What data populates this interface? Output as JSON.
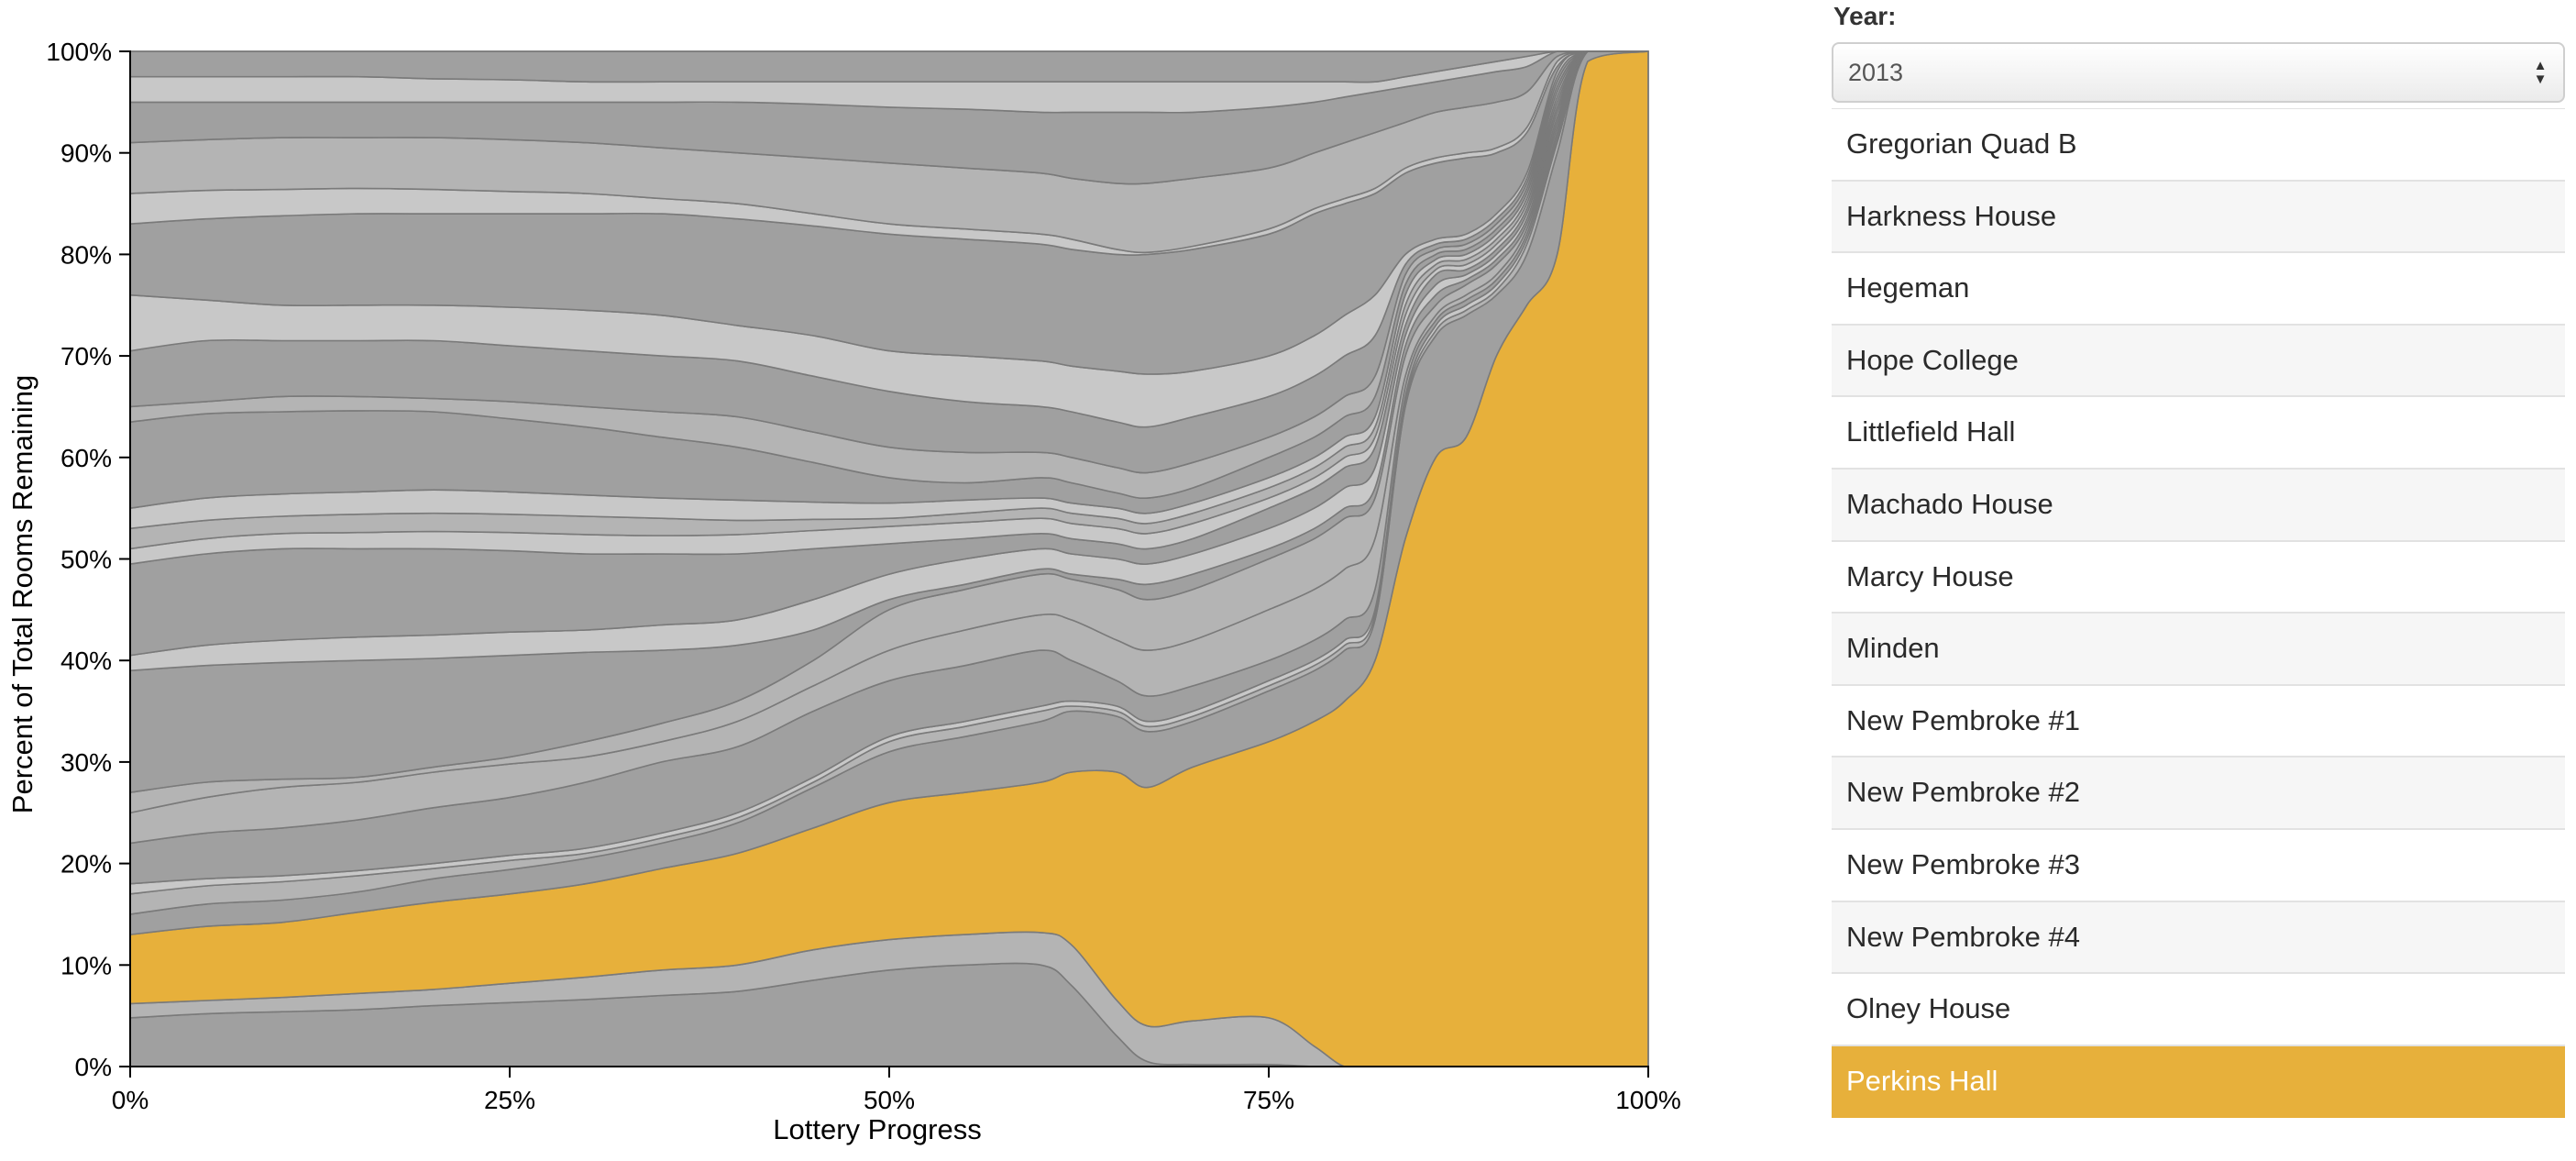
{
  "chart_data": {
    "type": "area",
    "stacked": true,
    "title": "",
    "xlabel": "Lottery Progress",
    "ylabel": "Percent of Total Rooms Remaining",
    "xlim": [
      0,
      100
    ],
    "ylim": [
      0,
      100
    ],
    "x_ticks": [
      "0%",
      "25%",
      "50%",
      "75%",
      "100%"
    ],
    "y_ticks": [
      "0%",
      "10%",
      "20%",
      "30%",
      "40%",
      "50%",
      "60%",
      "70%",
      "80%",
      "90%",
      "100%"
    ],
    "highlight_color": "#e7b03b",
    "x": [
      0,
      5,
      10,
      15,
      20,
      25,
      30,
      35,
      40,
      45,
      50,
      55,
      60,
      62,
      65,
      67,
      70,
      75,
      78,
      80,
      82,
      84,
      86,
      88,
      90,
      92,
      94,
      96,
      100
    ],
    "boundaries": [
      [
        4.8,
        5.2,
        5.4,
        5.6,
        6,
        6.3,
        6.6,
        7,
        7.4,
        8.5,
        9.5,
        10,
        10,
        8,
        3,
        0.5,
        0.2,
        0.2,
        0,
        0,
        0,
        0,
        0,
        0,
        0,
        0,
        0,
        0,
        0
      ],
      [
        6.2,
        6.5,
        6.8,
        7.2,
        7.6,
        8.2,
        8.8,
        9.5,
        10,
        11.5,
        12.5,
        13,
        13.2,
        12,
        6.5,
        4,
        4.5,
        4.8,
        2,
        0,
        0,
        0,
        0,
        0,
        0,
        0,
        0,
        0,
        0
      ],
      [
        13,
        13.8,
        14.2,
        15.2,
        16.2,
        17,
        18,
        19.5,
        21,
        23.5,
        26,
        27,
        28,
        29,
        29,
        27.5,
        29.5,
        32,
        34,
        36,
        40,
        52,
        60,
        62,
        70,
        75,
        80,
        99,
        100
      ],
      [
        15,
        16,
        16.4,
        17.2,
        18.5,
        19.4,
        20.5,
        22,
        24,
        27.5,
        31,
        32.5,
        34,
        35,
        34.5,
        33,
        34,
        37,
        39,
        41,
        44,
        65,
        72,
        74,
        76,
        80,
        90,
        100,
        100
      ],
      [
        17,
        17.8,
        18.2,
        18.8,
        19.5,
        20.3,
        21,
        22.5,
        24.5,
        28,
        32,
        33.5,
        35,
        35.5,
        35,
        33.5,
        34.5,
        37.5,
        39.5,
        41.5,
        44.5,
        65.5,
        72.5,
        74.5,
        76.5,
        81,
        91,
        100,
        100
      ],
      [
        18,
        18.5,
        18.8,
        19.3,
        20,
        20.8,
        21.5,
        23,
        25,
        28.5,
        32.5,
        34,
        35.5,
        36,
        35.5,
        34,
        35,
        38,
        40,
        42,
        45,
        66,
        73,
        75,
        77,
        81.5,
        91.5,
        100,
        100
      ],
      [
        22,
        23,
        23.5,
        24.3,
        25.5,
        26.5,
        28,
        30,
        31.5,
        35,
        38,
        39.5,
        41,
        40,
        38,
        36.5,
        37.5,
        40,
        42,
        44,
        47,
        67,
        73.5,
        75.5,
        77.5,
        82,
        92,
        100,
        100
      ],
      [
        25,
        26.5,
        27.5,
        28,
        29,
        29.8,
        30.5,
        32,
        34,
        37.5,
        41,
        43,
        44.5,
        44,
        42,
        41,
        42,
        45,
        47,
        49,
        52,
        68,
        74,
        76,
        78,
        82.5,
        92.5,
        100,
        100
      ],
      [
        27,
        28,
        28.3,
        28.5,
        29.5,
        30.5,
        32,
        33.8,
        36,
        40,
        45,
        47,
        48.5,
        48,
        47,
        46,
        47,
        50,
        52,
        54,
        56,
        70,
        75,
        77,
        79,
        83,
        93,
        100,
        100
      ],
      [
        39,
        39.5,
        39.8,
        40,
        40.2,
        40.5,
        40.8,
        41,
        41.5,
        43,
        46,
        47.5,
        49,
        48.5,
        48,
        47.5,
        48.5,
        51,
        53,
        55,
        57,
        71,
        76,
        77.5,
        79.5,
        83.5,
        93.5,
        100,
        100
      ],
      [
        40.5,
        41.5,
        42,
        42.3,
        42.5,
        42.8,
        43,
        43.5,
        44,
        46,
        48.5,
        50,
        51,
        50.5,
        50,
        49.5,
        50.5,
        53,
        55,
        57,
        59,
        72,
        77,
        78,
        80,
        84,
        94,
        100,
        100
      ],
      [
        49.5,
        50.5,
        51,
        51,
        51,
        50.8,
        50.5,
        50.5,
        50.5,
        51,
        51.5,
        52,
        52.5,
        52,
        51.5,
        51,
        52,
        55,
        57,
        59,
        61,
        73,
        78,
        78.5,
        80.5,
        84.5,
        94.5,
        100,
        100
      ],
      [
        51,
        52,
        52.5,
        52.6,
        52.7,
        52.6,
        52.4,
        52.3,
        52.4,
        52.8,
        53.2,
        53.6,
        54,
        53.5,
        53,
        52.5,
        53.5,
        56,
        58,
        60,
        62,
        74,
        78.5,
        79,
        81,
        85,
        95,
        100,
        100
      ],
      [
        53,
        53.8,
        54.2,
        54.4,
        54.5,
        54.4,
        54.2,
        54,
        53.8,
        53.9,
        54,
        54.5,
        55,
        54.5,
        54,
        53.5,
        54.5,
        57,
        59,
        61,
        63,
        75,
        79,
        79.5,
        81.5,
        85.5,
        95.5,
        100,
        100
      ],
      [
        55,
        56,
        56.4,
        56.6,
        56.8,
        56.6,
        56.3,
        56,
        55.8,
        55.6,
        55.5,
        55.8,
        56,
        55.5,
        55,
        54.5,
        55.5,
        58,
        60,
        62,
        64,
        76,
        79.5,
        80,
        82,
        86,
        96,
        100,
        100
      ],
      [
        63.5,
        64.3,
        64.5,
        64.6,
        64.5,
        63.8,
        63,
        62,
        61,
        59.5,
        58,
        57.5,
        58,
        57.5,
        56.5,
        56,
        57,
        60,
        62,
        64,
        66,
        77,
        80,
        80.5,
        82.5,
        86.5,
        96.5,
        100,
        100
      ],
      [
        65,
        65.5,
        66,
        66,
        65.8,
        65.5,
        65,
        64.5,
        64,
        62.5,
        61,
        60.5,
        60.5,
        60,
        59,
        58.5,
        59.5,
        62,
        64,
        66,
        68,
        78,
        80.5,
        81,
        83,
        87,
        97,
        100,
        100
      ],
      [
        70.5,
        71.5,
        71.5,
        71.5,
        71.5,
        71,
        70.5,
        70,
        69.5,
        68,
        66.5,
        65.5,
        65,
        64.5,
        63.5,
        63,
        64,
        66,
        68,
        70,
        72,
        79,
        81,
        81.5,
        83.5,
        87.5,
        97.5,
        100,
        100
      ],
      [
        76,
        75.5,
        75,
        75,
        75,
        74.8,
        74.5,
        74,
        73,
        72,
        70.5,
        70,
        69.5,
        69,
        68.5,
        68.2,
        68.5,
        70,
        72,
        74,
        76,
        80,
        81.5,
        82,
        84,
        88,
        98,
        100,
        100
      ],
      [
        83,
        83.5,
        83.8,
        84,
        84,
        84,
        84,
        84,
        83.5,
        82.8,
        82,
        81.5,
        81,
        80.5,
        80,
        80,
        80.5,
        82,
        84,
        85,
        86,
        88,
        89,
        89.5,
        90,
        92,
        98.5,
        100,
        100
      ],
      [
        86,
        86.3,
        86.4,
        86.5,
        86.4,
        86.2,
        86,
        85.5,
        85,
        84,
        83,
        82.5,
        82,
        81.5,
        80.5,
        80.2,
        80.8,
        82.5,
        84.5,
        85.5,
        86.5,
        88.5,
        89.5,
        90,
        90.5,
        92.5,
        99,
        100,
        100
      ],
      [
        91,
        91.3,
        91.5,
        91.5,
        91.5,
        91.3,
        91,
        90.5,
        90,
        89.5,
        89,
        88.5,
        88,
        87.5,
        87,
        87,
        87.5,
        88.5,
        90,
        91,
        92,
        93,
        94,
        94.5,
        95,
        96,
        99.5,
        100,
        100
      ],
      [
        95,
        95,
        95,
        95,
        95,
        95,
        95,
        95,
        95,
        94.8,
        94.5,
        94.3,
        94,
        94,
        94,
        94,
        94,
        94.5,
        95,
        95.5,
        96,
        96.5,
        97,
        97.5,
        98,
        98.5,
        100,
        100,
        100
      ],
      [
        97.5,
        97.5,
        97.5,
        97.5,
        97.3,
        97.2,
        97,
        97,
        97,
        97,
        97,
        97,
        97,
        97,
        97,
        97,
        97,
        97,
        97,
        97,
        97,
        97.5,
        98,
        98.5,
        99,
        99.5,
        100,
        100,
        100
      ],
      [
        100,
        100,
        100,
        100,
        100,
        100,
        100,
        100,
        100,
        100,
        100,
        100,
        100,
        100,
        100,
        100,
        100,
        100,
        100,
        100,
        100,
        100,
        100,
        100,
        100,
        100,
        100,
        100,
        100
      ]
    ],
    "highlight_layer": 2,
    "layer_shades": [
      "#a0a0a0",
      "#b4b4b4",
      "#e7b03b",
      "#a0a0a0",
      "#b4b4b4",
      "#c8c8c8",
      "#a0a0a0",
      "#b4b4b4",
      "#b4b4b4",
      "#a0a0a0",
      "#c8c8c8",
      "#a0a0a0",
      "#c8c8c8",
      "#b4b4b4",
      "#c8c8c8",
      "#a0a0a0",
      "#b4b4b4",
      "#a0a0a0",
      "#c8c8c8",
      "#a0a0a0",
      "#c8c8c8",
      "#b4b4b4",
      "#a0a0a0",
      "#c8c8c8",
      "#a0a0a0"
    ]
  },
  "sidebar": {
    "year_label": "Year:",
    "year_value": "2013",
    "year_arrow_up": "▲",
    "year_arrow_down": "▼",
    "houses": [
      {
        "label": "Gregorian Quad B",
        "selected": false
      },
      {
        "label": "Harkness House",
        "selected": false
      },
      {
        "label": "Hegeman",
        "selected": false
      },
      {
        "label": "Hope College",
        "selected": false
      },
      {
        "label": "Littlefield Hall",
        "selected": false
      },
      {
        "label": "Machado House",
        "selected": false
      },
      {
        "label": "Marcy House",
        "selected": false
      },
      {
        "label": "Minden",
        "selected": false
      },
      {
        "label": "New Pembroke #1",
        "selected": false
      },
      {
        "label": "New Pembroke #2",
        "selected": false
      },
      {
        "label": "New Pembroke #3",
        "selected": false
      },
      {
        "label": "New Pembroke #4",
        "selected": false
      },
      {
        "label": "Olney House",
        "selected": false
      },
      {
        "label": "Perkins Hall",
        "selected": true
      }
    ]
  }
}
